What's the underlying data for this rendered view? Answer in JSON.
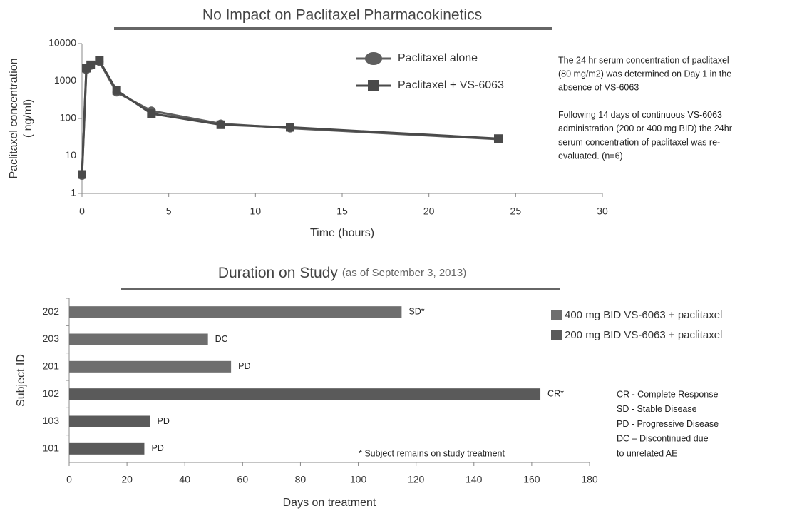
{
  "chart_data": [
    {
      "type": "line",
      "title": "No Impact on Paclitaxel Pharmacokinetics",
      "xlabel": "Time (hours)",
      "ylabel": [
        "Paclitaxel concentration",
        "( ng/ml)"
      ],
      "x": [
        0,
        0.25,
        0.5,
        1,
        2,
        4,
        8,
        12,
        24
      ],
      "series": [
        {
          "name": "Paclitaxel alone",
          "color": "#5e5e5e",
          "marker": "circle",
          "values": [
            3,
            2000,
            2600,
            3300,
            500,
            160,
            72,
            55,
            28
          ]
        },
        {
          "name": "Paclitaxel + VS-6063",
          "color": "#4a4a4a",
          "marker": "square",
          "values": [
            3.2,
            2200,
            2700,
            3500,
            560,
            135,
            68,
            58,
            29
          ]
        }
      ],
      "xlim": [
        0,
        30
      ],
      "xticks": [
        0,
        5,
        10,
        15,
        20,
        25,
        30
      ],
      "ylim": [
        1,
        10000
      ],
      "yticks": [
        1,
        10,
        100,
        1000,
        10000
      ],
      "log_y": true,
      "annotations": [
        [
          "The 24 hr serum concentration of paclitaxel",
          "(80 mg/m2) was determined on Day 1 in the",
          "absence of VS-6063"
        ],
        [
          "Following 14 days of continuous VS-6063",
          "administration (200  or 400 mg BID) the 24hr",
          "serum concentration of paclitaxel was re-",
          "evaluated. (n=6)"
        ]
      ]
    },
    {
      "type": "bar",
      "orientation": "horizontal",
      "title": "Duration on Study",
      "subtitle": "(as of September 3, 2013)",
      "xlabel": "Days on treatment",
      "ylabel": "Subject ID",
      "categories": [
        "202",
        "203",
        "201",
        "102",
        "103",
        "101"
      ],
      "series": [
        {
          "name": "400 mg BID VS-6063 + paclitaxel",
          "color": "#6e6e6e",
          "values": [
            115,
            48,
            56,
            null,
            null,
            null
          ],
          "value_labels": [
            "SD*",
            "DC",
            "PD",
            null,
            null,
            null
          ]
        },
        {
          "name": "200 mg BID VS-6063 + paclitaxel",
          "color": "#5a5a5a",
          "values": [
            null,
            null,
            null,
            163,
            28,
            26
          ],
          "value_labels": [
            null,
            null,
            null,
            "CR*",
            "PD",
            "PD"
          ]
        }
      ],
      "xlim": [
        0,
        180
      ],
      "xticks": [
        0,
        20,
        40,
        60,
        80,
        100,
        120,
        140,
        160,
        180
      ],
      "footnote": "* Subject remains on study treatment",
      "key": [
        "CR - Complete Response",
        "SD - Stable Disease",
        "PD - Progressive Disease",
        "DC – Discontinued due",
        "to unrelated AE"
      ]
    }
  ]
}
